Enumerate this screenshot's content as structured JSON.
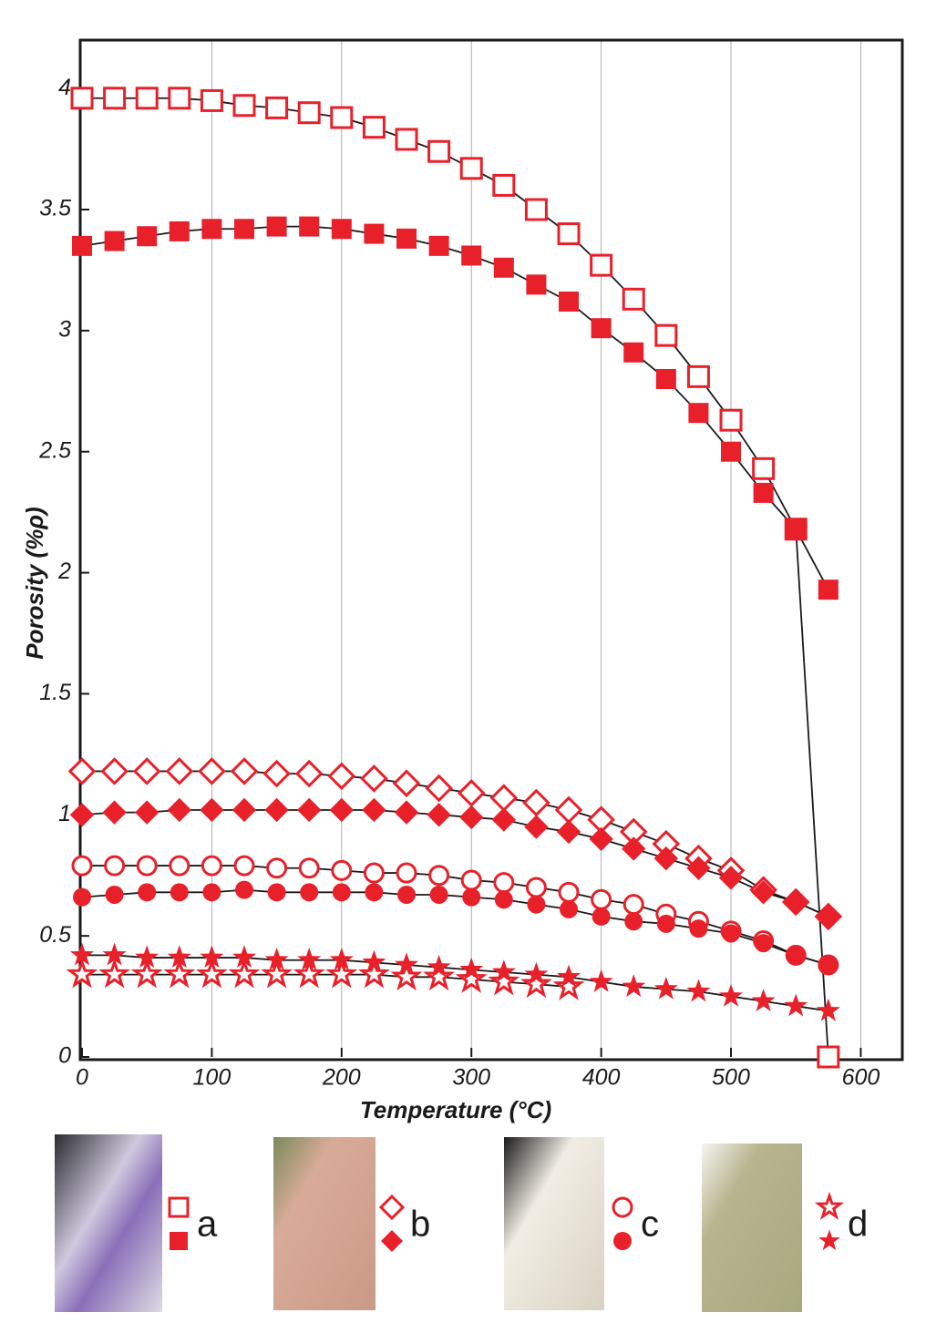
{
  "chart_data": {
    "type": "scatter",
    "xlabel": "Temperature (°C)",
    "ylabel": "Porosity (%ρ)",
    "x": [
      0,
      25,
      50,
      75,
      100,
      125,
      150,
      175,
      200,
      225,
      250,
      275,
      300,
      325,
      350,
      375,
      400,
      425,
      450,
      475,
      500,
      525,
      550,
      575
    ],
    "xlim": [
      0,
      632
    ],
    "xticks": [
      0,
      100,
      200,
      300,
      400,
      500,
      600
    ],
    "ylim": [
      0,
      4.2
    ],
    "yticks": [
      0,
      0.5,
      1,
      1.5,
      2,
      2.5,
      3,
      3.5,
      4
    ],
    "grid": true,
    "line_color": "#1a1a1a",
    "series": [
      {
        "name": "a",
        "color": "#e8202a",
        "marker": "square",
        "open_values": [
          3.96,
          3.96,
          3.96,
          3.96,
          3.95,
          3.93,
          3.92,
          3.9,
          3.88,
          3.84,
          3.79,
          3.74,
          3.67,
          3.6,
          3.5,
          3.4,
          3.27,
          3.13,
          2.98,
          2.81,
          2.63,
          2.43,
          2.18,
          0
        ],
        "filled_values": [
          3.35,
          3.37,
          3.39,
          3.41,
          3.42,
          3.42,
          3.43,
          3.43,
          3.42,
          3.4,
          3.38,
          3.35,
          3.31,
          3.26,
          3.19,
          3.12,
          3.01,
          2.91,
          2.8,
          2.66,
          2.5,
          2.33,
          2.18,
          1.93
        ]
      },
      {
        "name": "b",
        "color": "#e8202a",
        "marker": "diamond",
        "open_values": [
          1.18,
          1.18,
          1.18,
          1.18,
          1.18,
          1.18,
          1.17,
          1.17,
          1.16,
          1.15,
          1.13,
          1.11,
          1.09,
          1.07,
          1.05,
          1.02,
          0.98,
          0.93,
          0.88,
          0.82,
          0.77,
          0.69,
          0.64,
          0.58
        ],
        "filled_values": [
          1.0,
          1.01,
          1.01,
          1.02,
          1.02,
          1.02,
          1.02,
          1.02,
          1.02,
          1.02,
          1.01,
          1.0,
          0.99,
          0.98,
          0.95,
          0.93,
          0.9,
          0.86,
          0.82,
          0.78,
          0.74,
          0.68,
          0.64,
          0.58
        ]
      },
      {
        "name": "c",
        "color": "#e8202a",
        "marker": "circle",
        "open_values": [
          0.79,
          0.79,
          0.79,
          0.79,
          0.79,
          0.79,
          0.78,
          0.78,
          0.77,
          0.76,
          0.76,
          0.75,
          0.73,
          0.72,
          0.7,
          0.68,
          0.65,
          0.63,
          0.59,
          0.56,
          0.52,
          0.48,
          0.42,
          0.38
        ],
        "filled_values": [
          0.66,
          0.67,
          0.68,
          0.68,
          0.68,
          0.69,
          0.68,
          0.68,
          0.68,
          0.68,
          0.67,
          0.67,
          0.66,
          0.65,
          0.63,
          0.61,
          0.58,
          0.56,
          0.55,
          0.53,
          0.51,
          0.47,
          0.42,
          0.38
        ]
      },
      {
        "name": "d",
        "color": "#e8202a",
        "marker": "star",
        "open_values": [
          0.34,
          0.34,
          0.34,
          0.34,
          0.34,
          0.34,
          0.34,
          0.34,
          0.34,
          0.34,
          0.33,
          0.33,
          0.32,
          0.31,
          0.3,
          0.29,
          null,
          null,
          null,
          null,
          null,
          null,
          null,
          null
        ],
        "filled_values": [
          0.42,
          0.42,
          0.41,
          0.41,
          0.41,
          0.41,
          0.4,
          0.4,
          0.4,
          0.39,
          0.38,
          0.37,
          0.36,
          0.35,
          0.34,
          0.33,
          0.31,
          0.29,
          0.28,
          0.27,
          0.25,
          0.23,
          0.21,
          0.19
        ]
      }
    ]
  }
}
